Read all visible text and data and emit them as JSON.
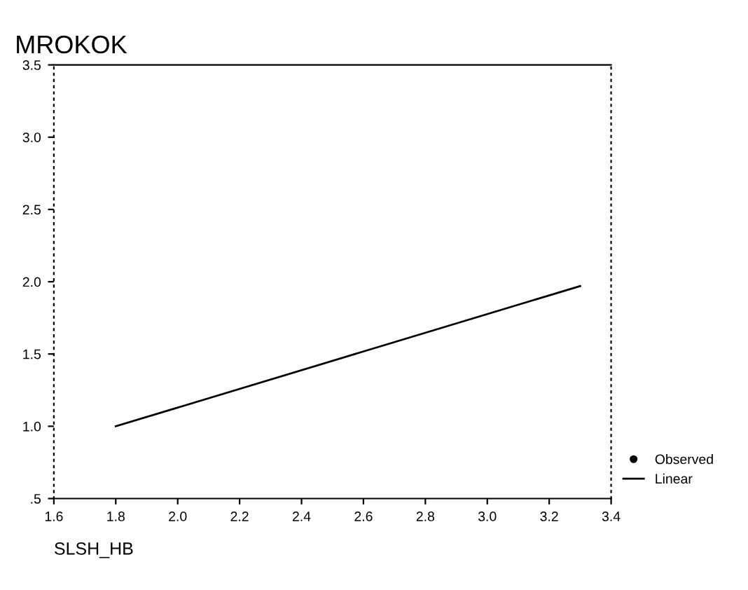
{
  "chart_data": {
    "type": "line",
    "title": "MROKOK",
    "xlabel": "SLSH_HB",
    "xlim": [
      1.6,
      3.4
    ],
    "xticks": [
      1.6,
      1.8,
      {
        "value": 2.0,
        "label": "2.0"
      },
      2.2,
      2.4,
      2.6,
      2.8,
      {
        "value": 3.0,
        "label": "3.0"
      },
      3.2,
      3.4
    ],
    "ylim": [
      0.5,
      3.5
    ],
    "yticks": [
      {
        "value": 0.5,
        "label": ".5"
      },
      {
        "value": 1.0,
        "label": "1.0"
      },
      1.5,
      {
        "value": 2.0,
        "label": "2.0"
      },
      2.5,
      {
        "value": 3.0,
        "label": "3.0"
      },
      3.5
    ],
    "series": [
      {
        "name": "Observed",
        "type": "scatter",
        "color": "#000000"
      },
      {
        "name": "Linear",
        "color": "#000000",
        "x": [
          1.8,
          3.3
        ],
        "values": [
          1.0,
          1.97
        ]
      }
    ],
    "legend": "bottom right",
    "grid": false
  }
}
